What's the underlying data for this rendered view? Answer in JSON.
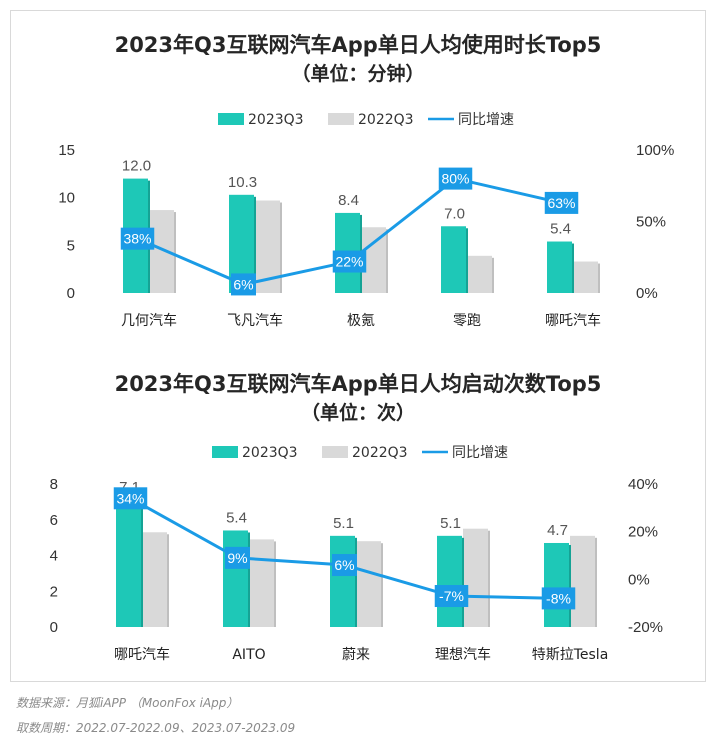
{
  "colors": {
    "bar2023": "#1ec8b7",
    "bar2022": "#d9d9d9",
    "line": "#1a9be6",
    "labelBox": "#1a9be6"
  },
  "chart_data": [
    {
      "type": "bar",
      "title": "2023年Q3互联网汽车App单日人均使用时长Top5",
      "subtitle": "（单位：分钟）",
      "legend": [
        "2023Q3",
        "2022Q3",
        "同比增速"
      ],
      "categories": [
        "几何汽车",
        "飞凡汽车",
        "极氪",
        "零跑",
        "哪吒汽车"
      ],
      "series": [
        {
          "name": "2023Q3",
          "values": [
            12.0,
            10.3,
            8.4,
            7.0,
            5.4
          ]
        },
        {
          "name": "2022Q3",
          "values": [
            8.7,
            9.7,
            6.9,
            3.9,
            3.3
          ]
        },
        {
          "name": "同比增速",
          "type": "line",
          "axis": "right",
          "values": [
            38,
            6,
            22,
            80,
            63
          ],
          "labels": [
            "38%",
            "6%",
            "22%",
            "80%",
            "63%"
          ]
        }
      ],
      "value_labels": [
        "12.0",
        "10.3",
        "8.4",
        "7.0",
        "5.4"
      ],
      "ylim": [
        0,
        15
      ],
      "yticks": [
        0,
        5,
        10,
        15
      ],
      "y2lim": [
        0,
        100
      ],
      "y2ticks": [
        "0%",
        "50%",
        "100%"
      ]
    },
    {
      "type": "bar",
      "title": "2023年Q3互联网汽车App单日人均启动次数Top5",
      "subtitle": "（单位：次）",
      "legend": [
        "2023Q3",
        "2022Q3",
        "同比增速"
      ],
      "categories": [
        "哪吒汽车",
        "AITO",
        "蔚来",
        "理想汽车",
        "特斯拉Tesla"
      ],
      "series": [
        {
          "name": "2023Q3",
          "values": [
            7.1,
            5.4,
            5.1,
            5.1,
            4.7
          ]
        },
        {
          "name": "2022Q3",
          "values": [
            5.3,
            4.9,
            4.8,
            5.5,
            5.1
          ]
        },
        {
          "name": "同比增速",
          "type": "line",
          "axis": "right",
          "values": [
            34,
            9,
            6,
            -7,
            -8
          ],
          "labels": [
            "34%",
            "9%",
            "6%",
            "-7%",
            "-8%"
          ]
        }
      ],
      "value_labels": [
        "7.1",
        "5.4",
        "5.1",
        "5.1",
        "4.7"
      ],
      "ylim": [
        0,
        8
      ],
      "yticks": [
        0,
        2,
        4,
        6,
        8
      ],
      "y2lim": [
        -20,
        40
      ],
      "y2ticks": [
        "-20%",
        "0%",
        "20%",
        "40%"
      ]
    }
  ],
  "footer": {
    "source": "数据来源：月狐iAPP （MoonFox iApp）",
    "period": "取数周期：2022.07-2022.09、2023.07-2023.09"
  }
}
